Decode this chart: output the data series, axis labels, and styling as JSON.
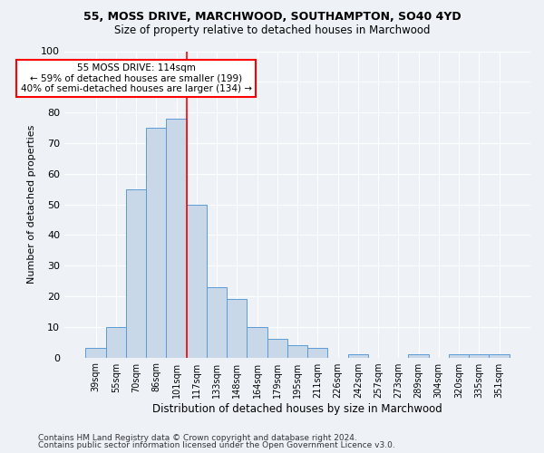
{
  "title_line1": "55, MOSS DRIVE, MARCHWOOD, SOUTHAMPTON, SO40 4YD",
  "title_line2": "Size of property relative to detached houses in Marchwood",
  "xlabel": "Distribution of detached houses by size in Marchwood",
  "ylabel": "Number of detached properties",
  "bin_labels": [
    "39sqm",
    "55sqm",
    "70sqm",
    "86sqm",
    "101sqm",
    "117sqm",
    "133sqm",
    "148sqm",
    "164sqm",
    "179sqm",
    "195sqm",
    "211sqm",
    "226sqm",
    "242sqm",
    "257sqm",
    "273sqm",
    "289sqm",
    "304sqm",
    "320sqm",
    "335sqm",
    "351sqm"
  ],
  "bar_heights": [
    3,
    10,
    55,
    75,
    78,
    50,
    23,
    19,
    10,
    6,
    4,
    3,
    0,
    1,
    0,
    0,
    1,
    0,
    1,
    1,
    1
  ],
  "bar_color": "#c8d8e8",
  "bar_edge_color": "#5b9bd5",
  "vline_color": "red",
  "vline_bin_idx": 5,
  "annotation_line1": "55 MOSS DRIVE: 114sqm",
  "annotation_line2": "← 59% of detached houses are smaller (199)",
  "annotation_line3": "40% of semi-detached houses are larger (134) →",
  "annotation_box_color": "white",
  "annotation_box_edge_color": "red",
  "footer_line1": "Contains HM Land Registry data © Crown copyright and database right 2024.",
  "footer_line2": "Contains public sector information licensed under the Open Government Licence v3.0.",
  "ylim": [
    0,
    100
  ],
  "background_color": "#eef2f7",
  "plot_background": "#eef2f7",
  "title_fontsize": 9,
  "subtitle_fontsize": 8.5,
  "ylabel_fontsize": 8,
  "xlabel_fontsize": 8.5,
  "tick_fontsize": 7,
  "footer_fontsize": 6.5,
  "annotation_fontsize": 7.5
}
